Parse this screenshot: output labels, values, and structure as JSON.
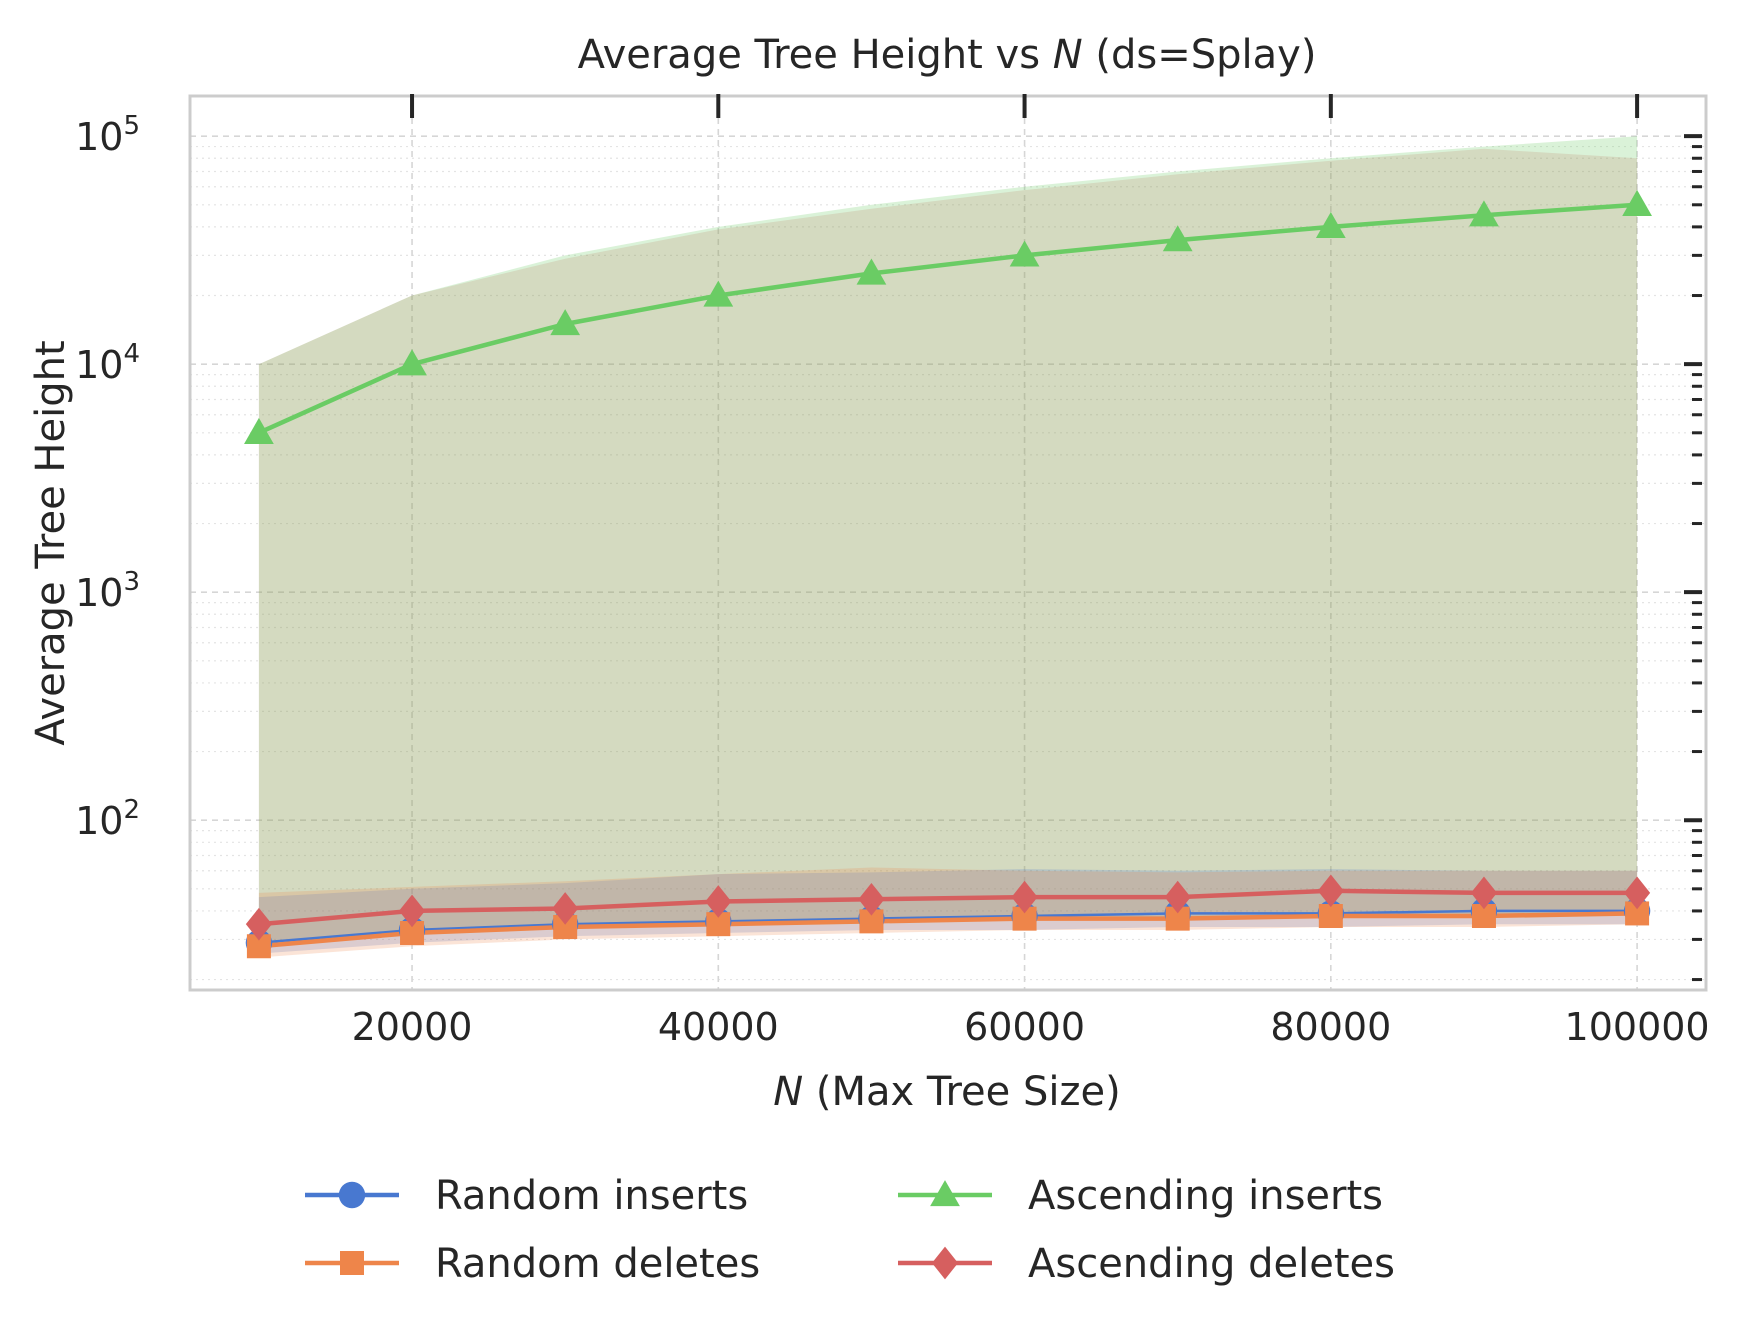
{
  "chart_data": {
    "type": "line",
    "title": "Average Tree Height vs N (ds=Splay)",
    "title_parts": [
      "Average Tree Height vs ",
      "N",
      " (ds=Splay)"
    ],
    "xlabel": "N (Max Tree Size)",
    "xlabel_parts": [
      "N",
      " (Max Tree Size)"
    ],
    "ylabel": "Average Tree Height",
    "y_scale": "log",
    "xlim": [
      5500,
      104500
    ],
    "ylim": [
      18,
      150000
    ],
    "x_ticks": [
      20000,
      40000,
      60000,
      80000,
      100000
    ],
    "y_ticks": [
      100,
      1000,
      10000,
      100000
    ],
    "y_tick_labels": [
      {
        "base": "10",
        "exp": "2"
      },
      {
        "base": "10",
        "exp": "3"
      },
      {
        "base": "10",
        "exp": "4"
      },
      {
        "base": "10",
        "exp": "5"
      }
    ],
    "grid": true,
    "legend_position": "bottom",
    "x": [
      10000,
      20000,
      30000,
      40000,
      50000,
      60000,
      70000,
      80000,
      90000,
      100000
    ],
    "series": [
      {
        "name": "Random inserts",
        "color": "#4878d0",
        "marker": "circle",
        "values": [
          29,
          33,
          35,
          36,
          37,
          38,
          39,
          39,
          40,
          40
        ],
        "band_low": [
          26,
          29,
          31,
          32,
          33,
          33,
          34,
          34,
          35,
          35
        ],
        "band_high": [
          46,
          50,
          53,
          58,
          59,
          61,
          60,
          61,
          60,
          60
        ]
      },
      {
        "name": "Random deletes",
        "color": "#ee854a",
        "marker": "square",
        "values": [
          28,
          32,
          34,
          35,
          36,
          37,
          37,
          38,
          38,
          39
        ],
        "band_low": [
          25,
          28,
          30,
          31,
          32,
          33,
          33,
          34,
          34,
          35
        ],
        "band_high": [
          48,
          51,
          54,
          58,
          62,
          60,
          59,
          60,
          60,
          60
        ]
      },
      {
        "name": "Ascending inserts",
        "color": "#6acc64",
        "marker": "triangle",
        "values": [
          5000,
          10000,
          15000,
          20000,
          25000,
          30000,
          35000,
          40000,
          45000,
          50000
        ],
        "band_low": [
          28,
          32,
          34,
          35,
          36,
          37,
          37,
          38,
          38,
          39
        ],
        "band_high": [
          10000,
          20000,
          30000,
          40000,
          50000,
          60000,
          70000,
          80000,
          90000,
          100000
        ]
      },
      {
        "name": "Ascending deletes",
        "color": "#d65f5f",
        "marker": "diamond",
        "values": [
          35,
          40,
          41,
          44,
          45,
          46,
          46,
          49,
          48,
          48
        ],
        "band_low": [
          28,
          32,
          34,
          35,
          36,
          37,
          37,
          38,
          38,
          39
        ],
        "band_high": [
          10000,
          20000,
          29000,
          39000,
          48000,
          58000,
          68000,
          78000,
          88000,
          80000
        ]
      }
    ]
  }
}
